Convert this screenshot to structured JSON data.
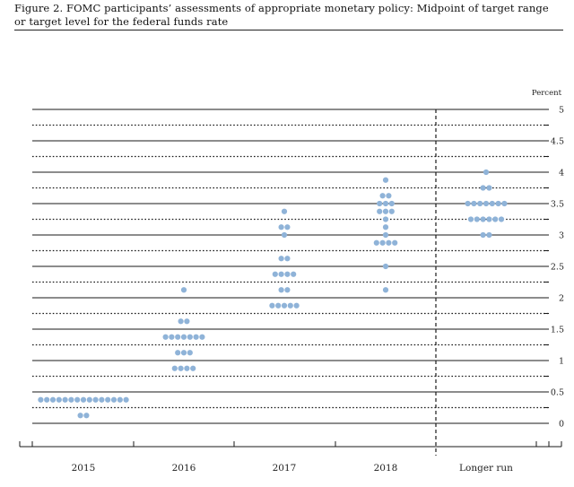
{
  "figure": {
    "title": "Figure 2. FOMC participants’ assessments of appropriate monetary policy: Midpoint of target range or target level for the federal funds rate"
  },
  "chart_data": {
    "type": "scatter",
    "title": "Figure 2. FOMC participants’ assessments of appropriate monetary policy: Midpoint of target range or target level for the federal funds rate",
    "unit_label": "Percent",
    "xlabel": "",
    "ylabel": "",
    "categories": [
      "2015",
      "2016",
      "2017",
      "2018",
      "Longer run"
    ],
    "ylim": [
      0,
      5
    ],
    "y_ticks": [
      "0",
      "0.5",
      "1",
      "1.5",
      "2",
      "2.5",
      "3",
      "3.5",
      "4",
      "4.5",
      "5"
    ],
    "gridlines": "solid at whole and half percents, dotted at quarter percents",
    "separator_before": "Longer run",
    "dot_color": "#8fb3d8",
    "series": [
      {
        "category": "2015",
        "points": [
          {
            "y": 0.375,
            "count": 15
          },
          {
            "y": 0.125,
            "count": 2
          }
        ]
      },
      {
        "category": "2016",
        "points": [
          {
            "y": 2.125,
            "count": 1
          },
          {
            "y": 1.625,
            "count": 2
          },
          {
            "y": 1.375,
            "count": 7
          },
          {
            "y": 1.125,
            "count": 3
          },
          {
            "y": 0.875,
            "count": 4
          }
        ]
      },
      {
        "category": "2017",
        "points": [
          {
            "y": 3.375,
            "count": 1
          },
          {
            "y": 3.125,
            "count": 2
          },
          {
            "y": 3.0,
            "count": 1
          },
          {
            "y": 2.625,
            "count": 2
          },
          {
            "y": 2.375,
            "count": 4
          },
          {
            "y": 2.125,
            "count": 2
          },
          {
            "y": 1.875,
            "count": 5
          }
        ]
      },
      {
        "category": "2018",
        "points": [
          {
            "y": 3.875,
            "count": 1
          },
          {
            "y": 3.625,
            "count": 2
          },
          {
            "y": 3.5,
            "count": 3
          },
          {
            "y": 3.375,
            "count": 3
          },
          {
            "y": 3.25,
            "count": 1
          },
          {
            "y": 3.125,
            "count": 1
          },
          {
            "y": 3.0,
            "count": 1
          },
          {
            "y": 2.875,
            "count": 4
          },
          {
            "y": 2.5,
            "count": 1
          },
          {
            "y": 2.125,
            "count": 1
          }
        ]
      },
      {
        "category": "Longer run",
        "points": [
          {
            "y": 4.0,
            "count": 1
          },
          {
            "y": 3.75,
            "count": 2
          },
          {
            "y": 3.5,
            "count": 7
          },
          {
            "y": 3.25,
            "count": 6
          },
          {
            "y": 3.0,
            "count": 2
          }
        ]
      }
    ]
  }
}
